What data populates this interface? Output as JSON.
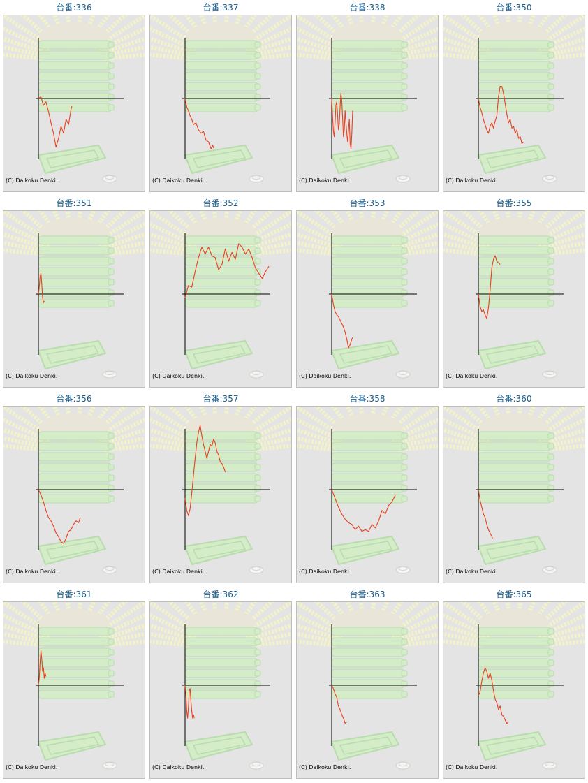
{
  "page": {
    "copyright": "(C) Daikoku Denki.",
    "title_prefix": "台番:",
    "colors": {
      "title": "#1a5c8a",
      "line": "#e8401c",
      "axis": "#000000",
      "panel_bg": "#e4e4e4",
      "panel_border": "#bdbdbd",
      "rays": "#f3f2c8",
      "machine": "#d5ecc8",
      "machine_edge": "#b8dcae",
      "medals": "#e9e5d8"
    },
    "icons": [
      "rays-background",
      "medal-stack",
      "medal-tray",
      "medal-coin-icon"
    ]
  },
  "chart_data": [
    {
      "type": "line",
      "title": "台番:336",
      "machine": "336",
      "xlim": [
        0,
        100
      ],
      "ylim": [
        -70,
        70
      ],
      "x": [
        0,
        3,
        6,
        9,
        12,
        15,
        18,
        21,
        24,
        27,
        30,
        33,
        36,
        39,
        40
      ],
      "y": [
        0,
        2,
        -8,
        -4,
        -15,
        -28,
        -40,
        -56,
        -46,
        -32,
        -40,
        -24,
        -30,
        -12,
        -9
      ]
    },
    {
      "type": "line",
      "title": "台番:337",
      "machine": "337",
      "xlim": [
        0,
        100
      ],
      "ylim": [
        -70,
        70
      ],
      "x": [
        0,
        2,
        4,
        6,
        8,
        10,
        13,
        16,
        19,
        22,
        25,
        28,
        31,
        33,
        34
      ],
      "y": [
        0,
        -10,
        -14,
        -20,
        -24,
        -30,
        -28,
        -36,
        -40,
        -38,
        -48,
        -50,
        -58,
        -54,
        -57
      ]
    },
    {
      "type": "line",
      "title": "台番:338",
      "machine": "338",
      "xlim": [
        0,
        100
      ],
      "ylim": [
        -70,
        70
      ],
      "x": [
        0,
        1,
        2,
        3,
        4,
        5,
        6,
        7,
        8,
        9,
        10,
        11,
        12,
        13,
        14,
        15,
        16,
        17,
        18,
        19,
        20,
        21,
        22,
        23,
        24,
        25
      ],
      "y": [
        0,
        -20,
        -38,
        -44,
        -28,
        -8,
        -4,
        -18,
        -36,
        -30,
        -10,
        6,
        -2,
        -22,
        -44,
        -36,
        -14,
        -28,
        -40,
        -50,
        -36,
        -24,
        -52,
        -58,
        -40,
        -14
      ]
    },
    {
      "type": "line",
      "title": "台番:350",
      "machine": "350",
      "xlim": [
        0,
        100
      ],
      "ylim": [
        -70,
        70
      ],
      "x": [
        0,
        2,
        4,
        6,
        8,
        10,
        12,
        14,
        16,
        18,
        20,
        22,
        24,
        26,
        28,
        30,
        32,
        34,
        36,
        38,
        40,
        42,
        44,
        46,
        48,
        50,
        52,
        54
      ],
      "y": [
        0,
        -10,
        -16,
        -24,
        -30,
        -36,
        -40,
        -32,
        -28,
        -34,
        -26,
        -20,
        2,
        14,
        14,
        6,
        -6,
        -18,
        -28,
        -24,
        -34,
        -32,
        -40,
        -36,
        -46,
        -44,
        -52,
        -50
      ]
    },
    {
      "type": "line",
      "title": "台番:351",
      "machine": "351",
      "xlim": [
        0,
        100
      ],
      "ylim": [
        -70,
        70
      ],
      "x": [
        0,
        1,
        2,
        3,
        4,
        5,
        6,
        7
      ],
      "y": [
        0,
        8,
        20,
        24,
        12,
        -4,
        -10,
        -8
      ]
    },
    {
      "type": "line",
      "title": "台番:352",
      "machine": "352",
      "xlim": [
        0,
        100
      ],
      "ylim": [
        -70,
        70
      ],
      "x": [
        0,
        4,
        8,
        12,
        16,
        20,
        24,
        28,
        32,
        36,
        40,
        44,
        48,
        52,
        56,
        60,
        64,
        68,
        72,
        76,
        80,
        84,
        88,
        92,
        96,
        100
      ],
      "y": [
        -4,
        10,
        8,
        26,
        42,
        54,
        46,
        54,
        44,
        42,
        28,
        34,
        52,
        38,
        48,
        40,
        58,
        54,
        46,
        52,
        42,
        30,
        24,
        18,
        26,
        32
      ]
    },
    {
      "type": "line",
      "title": "台番:353",
      "machine": "353",
      "xlim": [
        0,
        100
      ],
      "ylim": [
        -70,
        70
      ],
      "x": [
        0,
        2,
        4,
        6,
        8,
        10,
        12,
        14,
        16,
        18,
        20,
        22,
        24,
        25
      ],
      "y": [
        0,
        -12,
        -20,
        -24,
        -26,
        -30,
        -34,
        -38,
        -44,
        -52,
        -62,
        -58,
        -52,
        -50
      ]
    },
    {
      "type": "line",
      "title": "台番:355",
      "machine": "355",
      "xlim": [
        0,
        100
      ],
      "ylim": [
        -70,
        70
      ],
      "x": [
        0,
        2,
        4,
        6,
        8,
        10,
        12,
        14,
        16,
        18,
        20,
        22,
        24,
        26
      ],
      "y": [
        0,
        -14,
        -20,
        -18,
        -24,
        -28,
        -16,
        4,
        30,
        40,
        44,
        38,
        36,
        34
      ]
    },
    {
      "type": "line",
      "title": "台番:356",
      "machine": "356",
      "xlim": [
        0,
        100
      ],
      "ylim": [
        -70,
        70
      ],
      "x": [
        0,
        3,
        6,
        9,
        12,
        15,
        18,
        21,
        24,
        27,
        30,
        33,
        36,
        39,
        42,
        45,
        48,
        50
      ],
      "y": [
        0,
        -6,
        -14,
        -24,
        -32,
        -36,
        -42,
        -50,
        -54,
        -60,
        -62,
        -56,
        -48,
        -46,
        -40,
        -36,
        -38,
        -32
      ]
    },
    {
      "type": "line",
      "title": "台番:357",
      "machine": "357",
      "xlim": [
        0,
        100
      ],
      "ylim": [
        -70,
        70
      ],
      "x": [
        0,
        2,
        4,
        6,
        8,
        10,
        12,
        14,
        16,
        18,
        20,
        22,
        24,
        26,
        28,
        30,
        32,
        34,
        36,
        38,
        40,
        42,
        44,
        46,
        48
      ],
      "y": [
        -10,
        -24,
        -30,
        -22,
        -4,
        16,
        36,
        54,
        66,
        74,
        62,
        52,
        44,
        36,
        44,
        52,
        50,
        58,
        54,
        44,
        40,
        32,
        30,
        26,
        20
      ]
    },
    {
      "type": "line",
      "title": "台番:358",
      "machine": "358",
      "xlim": [
        0,
        100
      ],
      "ylim": [
        -70,
        70
      ],
      "x": [
        0,
        4,
        8,
        12,
        16,
        20,
        24,
        28,
        32,
        36,
        40,
        44,
        48,
        52,
        56,
        60,
        64,
        68,
        72,
        76
      ],
      "y": [
        0,
        -10,
        -20,
        -28,
        -34,
        -38,
        -40,
        -46,
        -42,
        -48,
        -46,
        -48,
        -40,
        -44,
        -36,
        -24,
        -28,
        -18,
        -14,
        -6
      ]
    },
    {
      "type": "line",
      "title": "台番:360",
      "machine": "360",
      "xlim": [
        0,
        100
      ],
      "ylim": [
        -70,
        70
      ],
      "x": [
        0,
        2,
        4,
        6,
        8,
        10,
        12,
        14,
        16,
        17
      ],
      "y": [
        0,
        -12,
        -20,
        -28,
        -32,
        -40,
        -46,
        -50,
        -54,
        -56
      ]
    },
    {
      "type": "line",
      "title": "台番:361",
      "machine": "361",
      "xlim": [
        0,
        100
      ],
      "ylim": [
        -70,
        70
      ],
      "x": [
        0,
        1,
        2,
        3,
        4,
        5,
        6,
        7,
        8,
        9
      ],
      "y": [
        0,
        8,
        26,
        40,
        30,
        16,
        20,
        8,
        14,
        10
      ]
    },
    {
      "type": "line",
      "title": "台番:362",
      "machine": "362",
      "xlim": [
        0,
        100
      ],
      "ylim": [
        -70,
        70
      ],
      "x": [
        0,
        1,
        2,
        3,
        4,
        5,
        6,
        7,
        8,
        9,
        10,
        11
      ],
      "y": [
        0,
        -10,
        -30,
        -38,
        -26,
        -6,
        -4,
        -18,
        -30,
        -38,
        -34,
        -38
      ]
    },
    {
      "type": "line",
      "title": "台番:363",
      "machine": "363",
      "xlim": [
        0,
        100
      ],
      "ylim": [
        -70,
        70
      ],
      "x": [
        0,
        2,
        4,
        6,
        8,
        10,
        12,
        14,
        16,
        18
      ],
      "y": [
        0,
        -4,
        -10,
        -14,
        -24,
        -28,
        -34,
        -38,
        -44,
        -42
      ]
    },
    {
      "type": "line",
      "title": "台番:365",
      "machine": "365",
      "xlim": [
        0,
        100
      ],
      "ylim": [
        -70,
        70
      ],
      "x": [
        0,
        2,
        4,
        6,
        8,
        10,
        12,
        14,
        16,
        18,
        20,
        22,
        24,
        26,
        28,
        30,
        32,
        34,
        36
      ],
      "y": [
        -12,
        -8,
        4,
        14,
        20,
        16,
        8,
        14,
        6,
        -6,
        -16,
        -20,
        -28,
        -24,
        -34,
        -36,
        -40,
        -44,
        -42
      ]
    }
  ]
}
